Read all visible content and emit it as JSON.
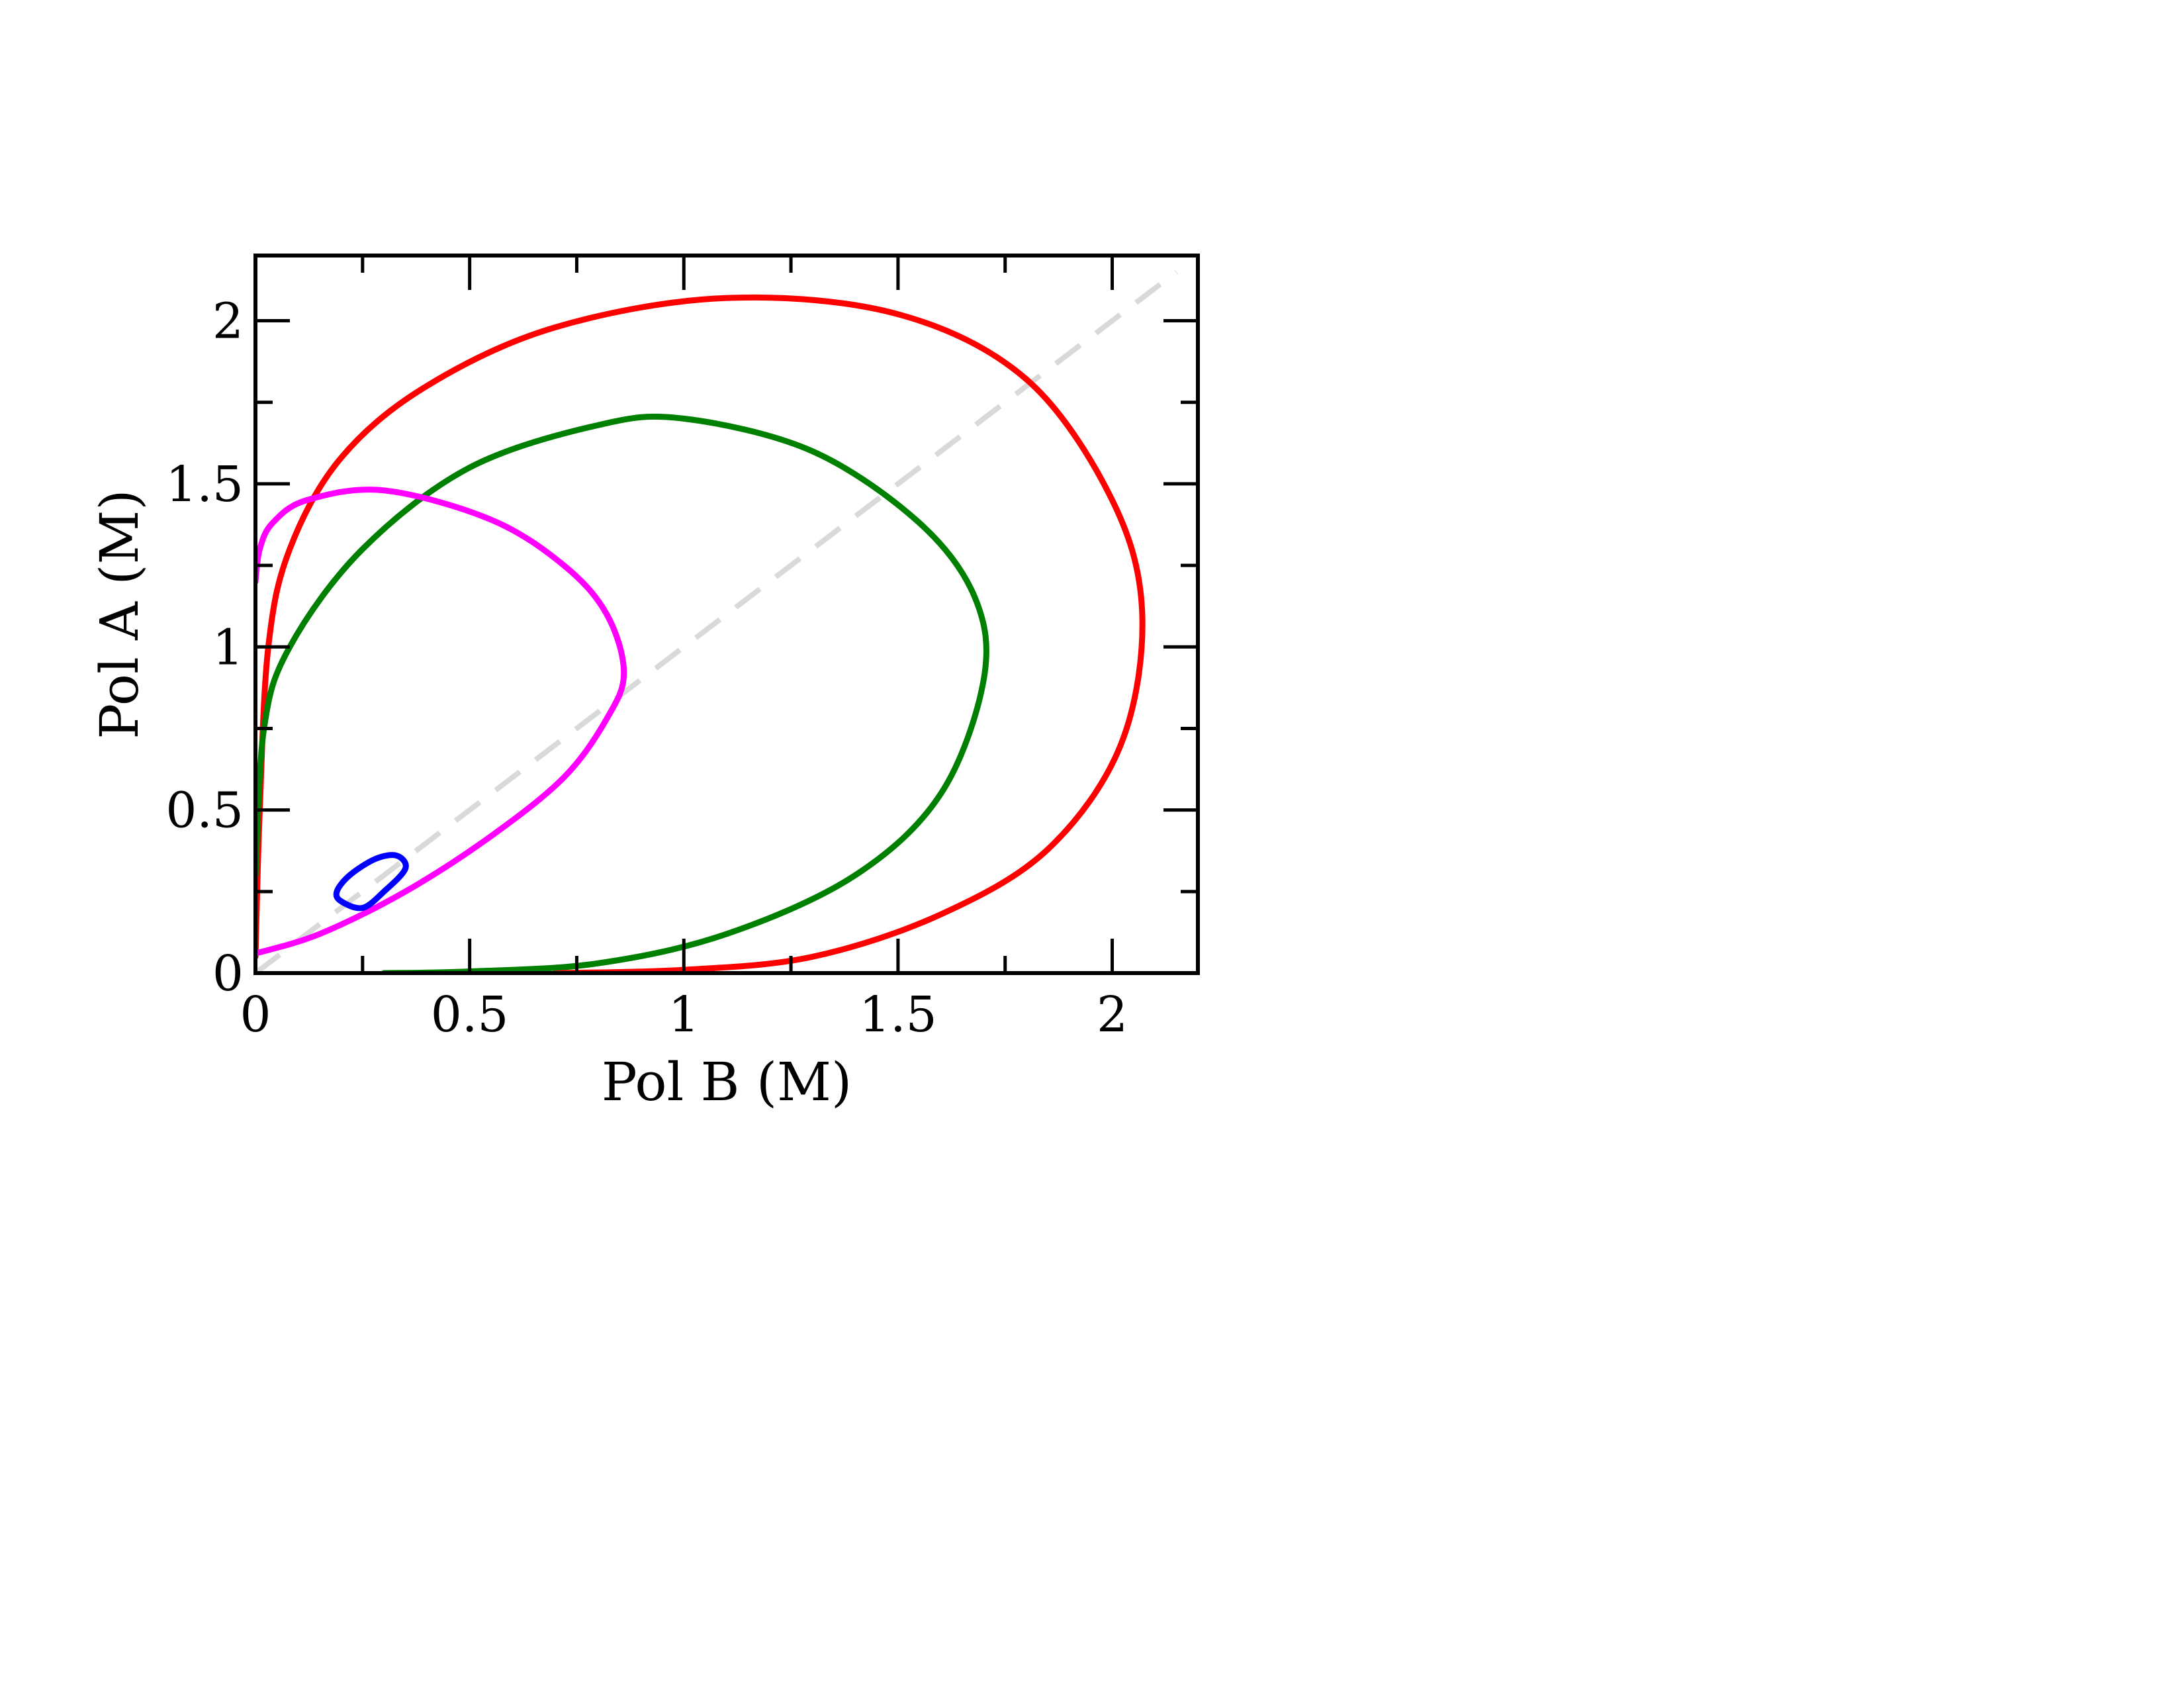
{
  "chart_data": {
    "type": "line",
    "xlabel": "Pol B (M)",
    "ylabel": "Pol A (M)",
    "xlim": [
      0,
      2.2
    ],
    "ylim": [
      0,
      2.2
    ],
    "x_ticks": [
      0,
      0.5,
      1,
      1.5,
      2
    ],
    "y_ticks": [
      0,
      0.5,
      1,
      1.5,
      2
    ],
    "x_tick_labels": [
      "0",
      "0.5",
      "1",
      "1.5",
      "2"
    ],
    "y_tick_labels": [
      "0",
      "0.5",
      "1",
      "1.5",
      "2"
    ],
    "minor_tick_step": 0.25,
    "grid": false,
    "legend": "none",
    "series": [
      {
        "color": "#ff0000",
        "closed": false,
        "points": [
          [
            0.0,
            0.05
          ],
          [
            0.01,
            0.5
          ],
          [
            0.03,
            1.0
          ],
          [
            0.08,
            1.3
          ],
          [
            0.2,
            1.58
          ],
          [
            0.4,
            1.8
          ],
          [
            0.7,
            1.98
          ],
          [
            1.1,
            2.07
          ],
          [
            1.5,
            2.02
          ],
          [
            1.8,
            1.82
          ],
          [
            2.0,
            1.45
          ],
          [
            2.07,
            1.1
          ],
          [
            2.02,
            0.7
          ],
          [
            1.85,
            0.38
          ],
          [
            1.6,
            0.18
          ],
          [
            1.3,
            0.05
          ],
          [
            1.0,
            0.01
          ],
          [
            0.7,
            0.0
          ]
        ]
      },
      {
        "color": "#008000",
        "closed": false,
        "points": [
          [
            0.0,
            0.3
          ],
          [
            0.02,
            0.75
          ],
          [
            0.08,
            1.0
          ],
          [
            0.25,
            1.3
          ],
          [
            0.5,
            1.55
          ],
          [
            0.8,
            1.68
          ],
          [
            1.0,
            1.7
          ],
          [
            1.3,
            1.6
          ],
          [
            1.55,
            1.38
          ],
          [
            1.68,
            1.15
          ],
          [
            1.7,
            0.9
          ],
          [
            1.6,
            0.55
          ],
          [
            1.4,
            0.3
          ],
          [
            1.1,
            0.12
          ],
          [
            0.8,
            0.03
          ],
          [
            0.5,
            0.005
          ],
          [
            0.3,
            0.0
          ]
        ]
      },
      {
        "color": "#ff00ff",
        "closed": false,
        "points": [
          [
            0.0,
            0.06
          ],
          [
            0.15,
            0.12
          ],
          [
            0.35,
            0.25
          ],
          [
            0.55,
            0.42
          ],
          [
            0.72,
            0.6
          ],
          [
            0.82,
            0.78
          ],
          [
            0.86,
            0.92
          ],
          [
            0.82,
            1.1
          ],
          [
            0.72,
            1.25
          ],
          [
            0.55,
            1.39
          ],
          [
            0.3,
            1.48
          ],
          [
            0.12,
            1.45
          ],
          [
            0.04,
            1.38
          ],
          [
            0.01,
            1.3
          ],
          [
            0.0,
            1.2
          ]
        ]
      },
      {
        "color": "#0000ff",
        "closed": true,
        "points": [
          [
            0.2,
            0.22
          ],
          [
            0.25,
            0.2
          ],
          [
            0.3,
            0.25
          ],
          [
            0.35,
            0.32
          ],
          [
            0.33,
            0.36
          ],
          [
            0.28,
            0.35
          ],
          [
            0.22,
            0.3
          ],
          [
            0.19,
            0.25
          ]
        ]
      }
    ],
    "reference_line": {
      "style": "dashed",
      "color": "#d9d9d9",
      "points": [
        [
          0.0,
          0.0
        ],
        [
          2.15,
          2.15
        ]
      ]
    }
  }
}
